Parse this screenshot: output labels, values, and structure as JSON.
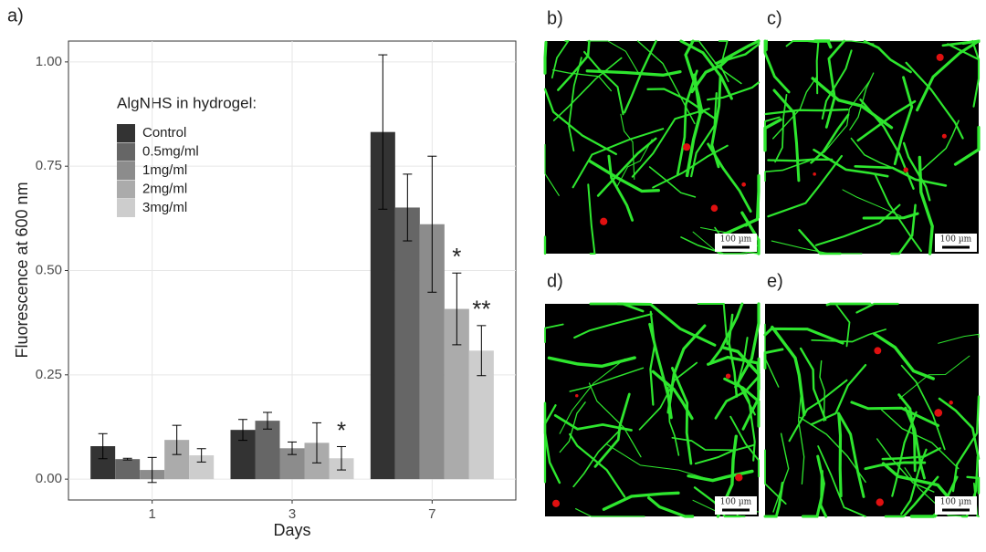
{
  "chart_data": {
    "type": "bar",
    "panel_label": "a)",
    "x_label": "Days",
    "y_label": "Fluorescence at 600 nm",
    "legend_title": "AlgNHS in hydrogel:",
    "categories": [
      "1",
      "3",
      "7"
    ],
    "series": [
      {
        "name": "Control",
        "color": "#333333",
        "values": [
          0.079,
          0.118,
          0.832
        ],
        "errors": [
          0.03,
          0.025,
          0.185
        ]
      },
      {
        "name": "0.5mg/ml",
        "color": "#666666",
        "values": [
          0.048,
          0.14,
          0.651
        ],
        "errors": [
          0.002,
          0.02,
          0.08
        ]
      },
      {
        "name": "1mg/ml",
        "color": "#8c8c8c",
        "values": [
          0.022,
          0.074,
          0.611
        ],
        "errors": [
          0.03,
          0.015,
          0.163
        ]
      },
      {
        "name": "2mg/ml",
        "color": "#ababab",
        "values": [
          0.094,
          0.087,
          0.408
        ],
        "errors": [
          0.035,
          0.048,
          0.086
        ]
      },
      {
        "name": "3mg/ml",
        "color": "#cdcdcd",
        "values": [
          0.057,
          0.05,
          0.308
        ],
        "errors": [
          0.016,
          0.028,
          0.06
        ]
      }
    ],
    "annotations": [
      "*",
      "*",
      "**"
    ],
    "ylim": [
      -0.05,
      1.05
    ],
    "yticks": [
      {
        "value": 0,
        "label": "0.00"
      },
      {
        "value": 0.25,
        "label": "0.25"
      },
      {
        "value": 0.5,
        "label": "0.50"
      },
      {
        "value": 0.75,
        "label": "0.75"
      },
      {
        "value": 1,
        "label": "1.00"
      }
    ],
    "grid": true
  },
  "images": [
    {
      "label": "b)",
      "scale": "100 µm"
    },
    {
      "label": "c)",
      "scale": "100 µm"
    },
    {
      "label": "d)",
      "scale": "100 µm"
    },
    {
      "label": "e)",
      "scale": "100 µm"
    }
  ]
}
